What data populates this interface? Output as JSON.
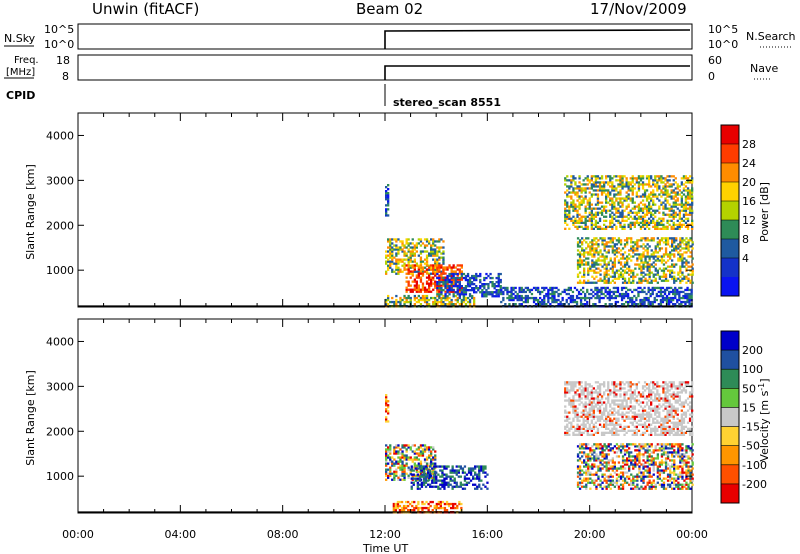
{
  "header": {
    "station": "Unwin (fitACF)",
    "beam": "Beam 02",
    "date": "17/Nov/2009"
  },
  "status_panels": {
    "nsky_label": "N.Sky",
    "nsky_ticks": [
      "10^5",
      "10^0"
    ],
    "nsearch_label": "N.Search",
    "nsearch_ticks": [
      "10^5",
      "10^0"
    ],
    "freq_label_top": "Freq.",
    "freq_label_bottom": "[MHz]",
    "freq_ticks": [
      "18",
      "8"
    ],
    "nave_label": "Nave",
    "nave_ticks": [
      "60",
      "0"
    ],
    "cpid_label": "CPID",
    "cpid_value": "stereo_scan 8551",
    "data_start_hour": 12
  },
  "power_colorbar": {
    "label": "Power [dB]",
    "ticks": [
      "28",
      "24",
      "20",
      "16",
      "12",
      "8",
      "4"
    ],
    "colors": [
      "#e80000",
      "#ff3c00",
      "#ff8c00",
      "#ffd200",
      "#b4d200",
      "#2e8b57",
      "#1f5aa0",
      "#1432c8",
      "#0a14f0"
    ]
  },
  "velocity_colorbar": {
    "label_main": "Velocity [m s",
    "label_sup": "-1",
    "label_end": "]",
    "ticks": [
      "200",
      "100",
      "50",
      "15",
      "-15",
      "-50",
      "-100",
      "-200"
    ],
    "colors": [
      "#0000c8",
      "#1f50a0",
      "#2e8b57",
      "#64c83c",
      "#c8c8c8",
      "#ffd232",
      "#ff9600",
      "#ff5000",
      "#e80000"
    ]
  },
  "chart_data": [
    {
      "type": "heatmap",
      "name": "power",
      "ylabel": "Slant Range [km]",
      "xlim": [
        0,
        24
      ],
      "ylim": [
        180,
        4500
      ],
      "yticks": [
        1000,
        2000,
        3000,
        4000
      ],
      "ytick_labels": [
        "1000",
        "2000",
        "3000",
        "4000"
      ],
      "regions": [
        {
          "t0": 12.0,
          "t1": 12.15,
          "r0": 2200,
          "r1": 2900,
          "value": "low"
        },
        {
          "t0": 12.0,
          "t1": 14.3,
          "r0": 900,
          "r1": 1700,
          "value": "mid"
        },
        {
          "t0": 12.8,
          "t1": 15.0,
          "r0": 500,
          "r1": 1100,
          "value": "high"
        },
        {
          "t0": 12.0,
          "t1": 15.5,
          "r0": 180,
          "r1": 450,
          "value": "mid"
        },
        {
          "t0": 14.0,
          "t1": 16.5,
          "r0": 400,
          "r1": 900,
          "value": "low"
        },
        {
          "t0": 19.0,
          "t1": 24.0,
          "r0": 1900,
          "r1": 3100,
          "value": "mid"
        },
        {
          "t0": 19.5,
          "t1": 24.0,
          "r0": 700,
          "r1": 1700,
          "value": "mid"
        },
        {
          "t0": 16.5,
          "t1": 24.0,
          "r0": 180,
          "r1": 600,
          "value": "low"
        }
      ]
    },
    {
      "type": "heatmap",
      "name": "velocity",
      "ylabel": "Slant Range [km]",
      "xlabel": "Time UT",
      "xlim": [
        0,
        24
      ],
      "ylim": [
        180,
        4500
      ],
      "xticks": [
        0,
        4,
        8,
        12,
        16,
        20,
        24
      ],
      "xtick_labels": [
        "00:00",
        "04:00",
        "08:00",
        "12:00",
        "16:00",
        "20:00",
        "00:00"
      ],
      "yticks": [
        1000,
        2000,
        3000,
        4000
      ],
      "ytick_labels": [
        "1000",
        "2000",
        "3000",
        "4000"
      ],
      "regions": [
        {
          "t0": 12.0,
          "t1": 12.15,
          "r0": 2200,
          "r1": 2800,
          "value": "neg"
        },
        {
          "t0": 12.0,
          "t1": 14.0,
          "r0": 900,
          "r1": 1700,
          "value": "mixed"
        },
        {
          "t0": 13.0,
          "t1": 16.0,
          "r0": 700,
          "r1": 1200,
          "value": "pos"
        },
        {
          "t0": 12.3,
          "t1": 15.0,
          "r0": 180,
          "r1": 450,
          "value": "neg"
        },
        {
          "t0": 19.0,
          "t1": 24.0,
          "r0": 1900,
          "r1": 3100,
          "value": "zero"
        },
        {
          "t0": 19.5,
          "t1": 24.0,
          "r0": 700,
          "r1": 1700,
          "value": "mixed"
        }
      ]
    }
  ]
}
